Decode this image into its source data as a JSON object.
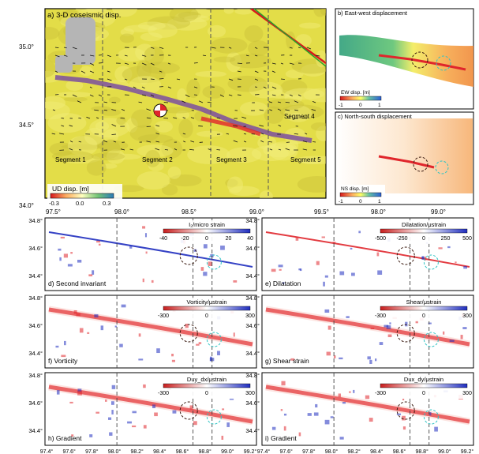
{
  "colors": {
    "topo_yellow": "#e8e24a",
    "fault_gray": "#7a7a7a",
    "rupture_purple": "#7b4fa0",
    "strain_red": "#e0262c",
    "strain_blue": "#1f2dbf",
    "boundary_black": "#111111"
  },
  "panel_a": {
    "title": "a) 3-D coseismic disp.",
    "segments": [
      "Segment 1",
      "Segment 2",
      "Segment 3",
      "Segment 4",
      "Segment 5"
    ],
    "colorbar": {
      "label": "UD disp. [m]",
      "ticks": [
        "-0.3",
        "0.0",
        "0.3"
      ]
    },
    "x_ticks": [
      "97.5°",
      "98.0°",
      "98.5°",
      "99.0°",
      "99.5°"
    ],
    "y_ticks": [
      "35.0°",
      "34.5°",
      "34.0°"
    ]
  },
  "panel_b": {
    "title": "b) East-west displacement",
    "colorbar": {
      "label": "EW disp. [m]",
      "ticks": [
        "-1",
        "0",
        "1"
      ]
    }
  },
  "panel_c": {
    "title": "c) North-south displacement",
    "colorbar": {
      "label": "NS disp. [m]",
      "ticks": [
        "-1",
        "0",
        "1"
      ]
    },
    "x_ticks": [
      "98.0°",
      "99.0°"
    ]
  },
  "strain_panels": [
    {
      "id": "d",
      "label": "d) Second invariant",
      "colorbar_label": "I₂/micro strain",
      "ticks": [
        "-40",
        "-20",
        "0",
        "20",
        "40"
      ]
    },
    {
      "id": "e",
      "label": "e) Dilatation",
      "colorbar_label": "Dilatation/μstrain",
      "ticks": [
        "-500",
        "-250",
        "0",
        "250",
        "500"
      ]
    },
    {
      "id": "f",
      "label": "f) Vorticity",
      "colorbar_label": "Vorticity/μstrain",
      "ticks": [
        "-300",
        "0",
        "300"
      ]
    },
    {
      "id": "g",
      "label": "g) Shear strain",
      "colorbar_label": "Shear/μstrain",
      "ticks": [
        "-300",
        "0",
        "300"
      ]
    },
    {
      "id": "h",
      "label": "h) Gradient",
      "colorbar_label": "Duy_dx/μstrain",
      "ticks": [
        "-300",
        "0",
        "300"
      ]
    },
    {
      "id": "i",
      "label": "i) Gradient",
      "colorbar_label": "Dux_dy/μstrain",
      "ticks": [
        "-300",
        "0",
        "300"
      ]
    }
  ],
  "strain_axes": {
    "x_ticks": [
      "97.4°",
      "97.6°",
      "97.8°",
      "98.0°",
      "98.2°",
      "98.4°",
      "98.6°",
      "98.8°",
      "99.0°",
      "99.2°"
    ],
    "y_ticks": [
      "34.8°",
      "34.6°",
      "34.4°"
    ]
  },
  "chart_data": [
    {
      "type": "heatmap",
      "title": "a) 3-D coseismic disp.",
      "colorbar_label": "UD disp. [m]",
      "xlim": [
        97.4,
        99.5
      ],
      "ylim": [
        34.0,
        35.15
      ]
    },
    {
      "type": "heatmap",
      "title": "b) East-west displacement",
      "colorbar_label": "EW disp. [m]"
    },
    {
      "type": "heatmap",
      "title": "c) North-south displacement",
      "colorbar_label": "NS disp. [m]"
    },
    {
      "type": "heatmap",
      "title": "d) Second invariant",
      "colorbar_label": "I₂/micro strain",
      "xlim": [
        97.4,
        99.3
      ],
      "ylim": [
        34.3,
        34.8
      ]
    },
    {
      "type": "heatmap",
      "title": "e) Dilatation",
      "colorbar_label": "Dilatation/μstrain",
      "xlim": [
        97.4,
        99.3
      ],
      "ylim": [
        34.3,
        34.8
      ]
    },
    {
      "type": "heatmap",
      "title": "f) Vorticity",
      "colorbar_label": "Vorticity/μstrain",
      "xlim": [
        97.4,
        99.3
      ],
      "ylim": [
        34.3,
        34.8
      ]
    },
    {
      "type": "heatmap",
      "title": "g) Shear strain",
      "colorbar_label": "Shear/μstrain",
      "xlim": [
        97.4,
        99.3
      ],
      "ylim": [
        34.3,
        34.8
      ]
    },
    {
      "type": "heatmap",
      "title": "h) Gradient",
      "colorbar_label": "Duy_dx/μstrain",
      "xlim": [
        97.4,
        99.3
      ],
      "ylim": [
        34.3,
        34.8
      ]
    },
    {
      "type": "heatmap",
      "title": "i) Gradient",
      "colorbar_label": "Dux_dy/μstrain",
      "xlim": [
        97.4,
        99.3
      ],
      "ylim": [
        34.3,
        34.8
      ]
    }
  ]
}
